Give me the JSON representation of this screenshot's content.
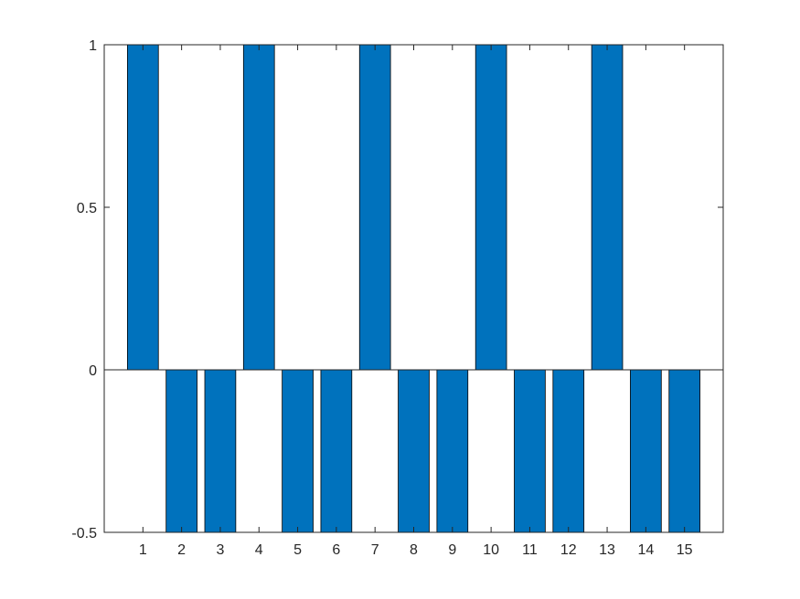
{
  "chart_data": {
    "type": "bar",
    "categories": [
      "1",
      "2",
      "3",
      "4",
      "5",
      "6",
      "7",
      "8",
      "9",
      "10",
      "11",
      "12",
      "13",
      "14",
      "15"
    ],
    "values": [
      1,
      -0.5,
      -0.5,
      1,
      -0.5,
      -0.5,
      1,
      -0.5,
      -0.5,
      1,
      -0.5,
      -0.5,
      1,
      -0.5,
      -0.5
    ],
    "title": "",
    "xlabel": "",
    "ylabel": "",
    "ylim": [
      -0.5,
      1
    ],
    "xlim": [
      0,
      16
    ],
    "yticks": [
      -0.5,
      0,
      0.5,
      1
    ],
    "ytick_labels": [
      "-0.5",
      "0",
      "0.5",
      "1"
    ],
    "grid": false,
    "legend": "none",
    "colors": {
      "bar": "#0072BD",
      "bar_edge": "#000000",
      "axes": "#262626",
      "background": "#ffffff"
    }
  }
}
